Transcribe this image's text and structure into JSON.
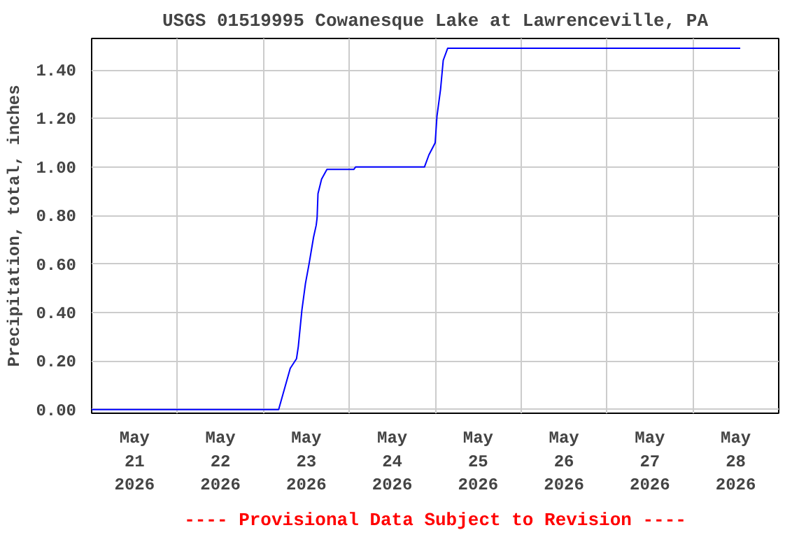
{
  "chart_data": {
    "type": "line",
    "title": "USGS 01519995 Cowanesque Lake at Lawrenceville, PA",
    "ylabel": "Precipitation, total, inches",
    "annotations": [
      "---- Provisional Data Subject to Revision ----"
    ],
    "series": [
      {
        "color": "#0000ff",
        "x": [
          "2026-05-21T00:00",
          "2026-05-23T04:15",
          "2026-05-23T07:30",
          "2026-05-23T09:15",
          "2026-05-23T09:45",
          "2026-05-23T10:45",
          "2026-05-23T11:45",
          "2026-05-23T12:45",
          "2026-05-23T14:00",
          "2026-05-23T14:45",
          "2026-05-23T15:00",
          "2026-05-23T15:15",
          "2026-05-23T16:15",
          "2026-05-23T17:45",
          "2026-05-24T01:15",
          "2026-05-24T01:45",
          "2026-05-24T05:30",
          "2026-05-24T21:00",
          "2026-05-24T22:15",
          "2026-05-25T00:00",
          "2026-05-25T00:30",
          "2026-05-25T01:30",
          "2026-05-25T02:15",
          "2026-05-25T03:30",
          "2026-05-28T13:15"
        ],
        "values": [
          0,
          0,
          0.17,
          0.21,
          0.26,
          0.41,
          0.52,
          0.6,
          0.71,
          0.76,
          0.79,
          0.89,
          0.95,
          0.99,
          0.99,
          1.0,
          1.0,
          1.0,
          1.05,
          1.1,
          1.21,
          1.32,
          1.44,
          1.49,
          1.49
        ]
      }
    ],
    "xlim": [
      "2026-05-21T00:00",
      "2026-05-29T00:00"
    ],
    "xticks": [
      {
        "value": "2026-05-21T12:00",
        "label": "May\n21\n2026"
      },
      {
        "value": "2026-05-22T00:00",
        "label": null
      },
      {
        "value": "2026-05-22T12:00",
        "label": "May\n22\n2026"
      },
      {
        "value": "2026-05-23T00:00",
        "label": null
      },
      {
        "value": "2026-05-23T12:00",
        "label": "May\n23\n2026"
      },
      {
        "value": "2026-05-24T00:00",
        "label": null
      },
      {
        "value": "2026-05-24T12:00",
        "label": "May\n24\n2026"
      },
      {
        "value": "2026-05-25T00:00",
        "label": null
      },
      {
        "value": "2026-05-25T12:00",
        "label": "May\n25\n2026"
      },
      {
        "value": "2026-05-26T00:00",
        "label": null
      },
      {
        "value": "2026-05-26T12:00",
        "label": "May\n26\n2026"
      },
      {
        "value": "2026-05-27T00:00",
        "label": null
      },
      {
        "value": "2026-05-27T12:00",
        "label": "May\n27\n2026"
      },
      {
        "value": "2026-05-28T00:00",
        "label": null
      },
      {
        "value": "2026-05-28T12:00",
        "label": "May\n28\n2026"
      }
    ],
    "ylim": [
      -0.015,
      1.53
    ],
    "yticks": [
      {
        "value": 0,
        "label": "0.00"
      },
      {
        "value": 0.2,
        "label": "0.20"
      },
      {
        "value": 0.4,
        "label": "0.40"
      },
      {
        "value": 0.6,
        "label": "0.60"
      },
      {
        "value": 0.8,
        "label": "0.80"
      },
      {
        "value": 1.0,
        "label": "1.00"
      },
      {
        "value": 1.2,
        "label": "1.20"
      },
      {
        "value": 1.4,
        "label": "1.40"
      }
    ],
    "grid": true,
    "marker": "none",
    "line_style": "solid"
  }
}
